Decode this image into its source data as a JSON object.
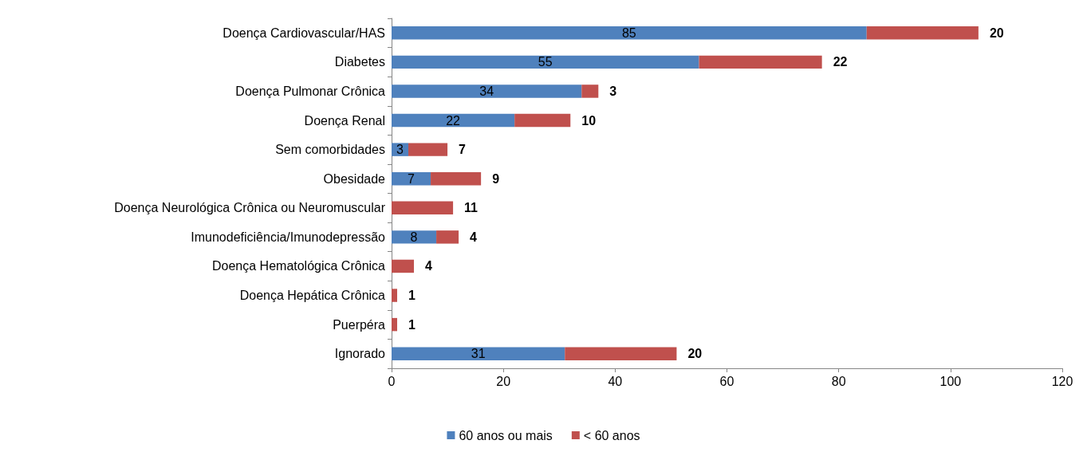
{
  "chart_data": {
    "type": "bar",
    "orientation": "horizontal",
    "stacked": true,
    "categories": [
      "Doença Cardiovascular/HAS",
      "Diabetes",
      "Doença Pulmonar Crônica",
      "Doença Renal",
      "Sem comorbidades",
      "Obesidade",
      "Doença Neurológica Crônica ou Neuromuscular",
      "Imunodeficiência/Imunodepressão",
      "Doença Hematológica Crônica",
      "Doença Hepática Crônica",
      "Puerpéra",
      "Ignorado"
    ],
    "series": [
      {
        "name": "60 anos ou mais",
        "color": "#4f81bd",
        "values": [
          85,
          55,
          34,
          22,
          3,
          7,
          0,
          8,
          0,
          0,
          0,
          31
        ],
        "value_labels": [
          "85",
          "55",
          "34",
          "22",
          "3",
          "7",
          null,
          "8",
          null,
          null,
          null,
          "31"
        ]
      },
      {
        "name": "< 60 anos",
        "color": "#c0504d",
        "values": [
          20,
          22,
          3,
          10,
          7,
          9,
          11,
          4,
          4,
          1,
          1,
          20
        ],
        "value_labels": [
          "20",
          "22",
          "3",
          "10",
          "7",
          "9",
          "11",
          "4",
          "4",
          "1",
          "1",
          "20"
        ]
      }
    ],
    "xlim": [
      0,
      120
    ],
    "xticks": [
      0,
      20,
      40,
      60,
      80,
      100,
      120
    ],
    "grid": false,
    "legend": "bottom"
  }
}
